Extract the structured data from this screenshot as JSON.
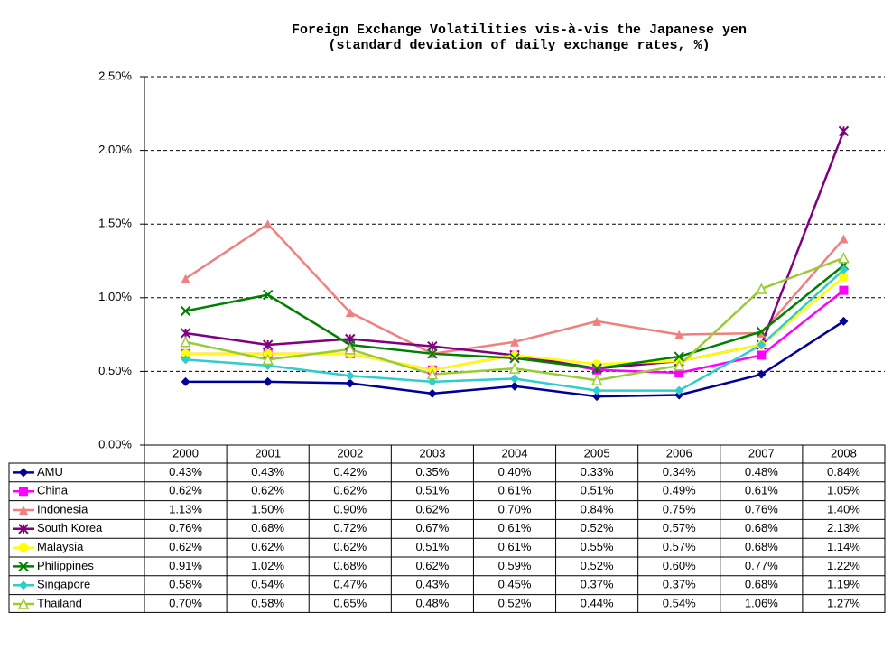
{
  "chart_data": {
    "type": "line",
    "title": "Foreign Exchange Volatilities vis-à-vis the Japanese yen",
    "subtitle": "(standard deviation of daily exchange rates, %)",
    "categories": [
      "2000",
      "2001",
      "2002",
      "2003",
      "2004",
      "2005",
      "2006",
      "2007",
      "2008"
    ],
    "ylim": [
      0,
      2.5
    ],
    "yticks": [
      {
        "value": 0,
        "label": "0.00%"
      },
      {
        "value": 0.5,
        "label": "0.50%"
      },
      {
        "value": 1,
        "label": "1.00%"
      },
      {
        "value": 1.5,
        "label": "1.50%"
      },
      {
        "value": 2,
        "label": "2.00%"
      },
      {
        "value": 2.5,
        "label": "2.50%"
      }
    ],
    "grid": true,
    "series": [
      {
        "name": "AMU",
        "color": "#000099",
        "marker": "diamond",
        "values": [
          0.43,
          0.43,
          0.42,
          0.35,
          0.4,
          0.33,
          0.34,
          0.48,
          0.84
        ],
        "value_labels": [
          "0.43%",
          "0.43%",
          "0.42%",
          "0.35%",
          "0.40%",
          "0.33%",
          "0.34%",
          "0.48%",
          "0.84%"
        ]
      },
      {
        "name": "China",
        "color": "#ff00ff",
        "marker": "square",
        "values": [
          0.62,
          0.62,
          0.62,
          0.51,
          0.61,
          0.51,
          0.49,
          0.61,
          1.05
        ],
        "value_labels": [
          "0.62%",
          "0.62%",
          "0.62%",
          "0.51%",
          "0.61%",
          "0.51%",
          "0.49%",
          "0.61%",
          "1.05%"
        ]
      },
      {
        "name": "Indonesia",
        "color": "#f08080",
        "marker": "triangle",
        "values": [
          1.13,
          1.5,
          0.9,
          0.62,
          0.7,
          0.84,
          0.75,
          0.76,
          1.4
        ],
        "value_labels": [
          "1.13%",
          "1.50%",
          "0.90%",
          "0.62%",
          "0.70%",
          "0.84%",
          "0.75%",
          "0.76%",
          "1.40%"
        ]
      },
      {
        "name": "South Korea",
        "color": "#800080",
        "marker": "star",
        "values": [
          0.76,
          0.68,
          0.72,
          0.67,
          0.61,
          0.52,
          0.57,
          0.68,
          2.13
        ],
        "value_labels": [
          "0.76%",
          "0.68%",
          "0.72%",
          "0.67%",
          "0.61%",
          "0.52%",
          "0.57%",
          "0.68%",
          "2.13%"
        ]
      },
      {
        "name": "Malaysia",
        "color": "#ffff00",
        "marker": "circle",
        "values": [
          0.62,
          0.62,
          0.62,
          0.51,
          0.61,
          0.55,
          0.57,
          0.68,
          1.14
        ],
        "value_labels": [
          "0.62%",
          "0.62%",
          "0.62%",
          "0.51%",
          "0.61%",
          "0.55%",
          "0.57%",
          "0.68%",
          "1.14%"
        ]
      },
      {
        "name": "Philippines",
        "color": "#008000",
        "marker": "x",
        "values": [
          0.91,
          1.02,
          0.68,
          0.62,
          0.59,
          0.52,
          0.6,
          0.77,
          1.22
        ],
        "value_labels": [
          "0.91%",
          "1.02%",
          "0.68%",
          "0.62%",
          "0.59%",
          "0.52%",
          "0.60%",
          "0.77%",
          "1.22%"
        ]
      },
      {
        "name": "Singapore",
        "color": "#33cccc",
        "marker": "diamond",
        "values": [
          0.58,
          0.54,
          0.47,
          0.43,
          0.45,
          0.37,
          0.37,
          0.68,
          1.19
        ],
        "value_labels": [
          "0.58%",
          "0.54%",
          "0.47%",
          "0.43%",
          "0.45%",
          "0.37%",
          "0.37%",
          "0.68%",
          "1.19%"
        ]
      },
      {
        "name": "Thailand",
        "color": "#99cc33",
        "marker": "triangle-open",
        "values": [
          0.7,
          0.58,
          0.65,
          0.48,
          0.52,
          0.44,
          0.54,
          1.06,
          1.27
        ],
        "value_labels": [
          "0.70%",
          "0.58%",
          "0.65%",
          "0.48%",
          "0.52%",
          "0.44%",
          "0.54%",
          "1.06%",
          "1.27%"
        ]
      }
    ]
  }
}
